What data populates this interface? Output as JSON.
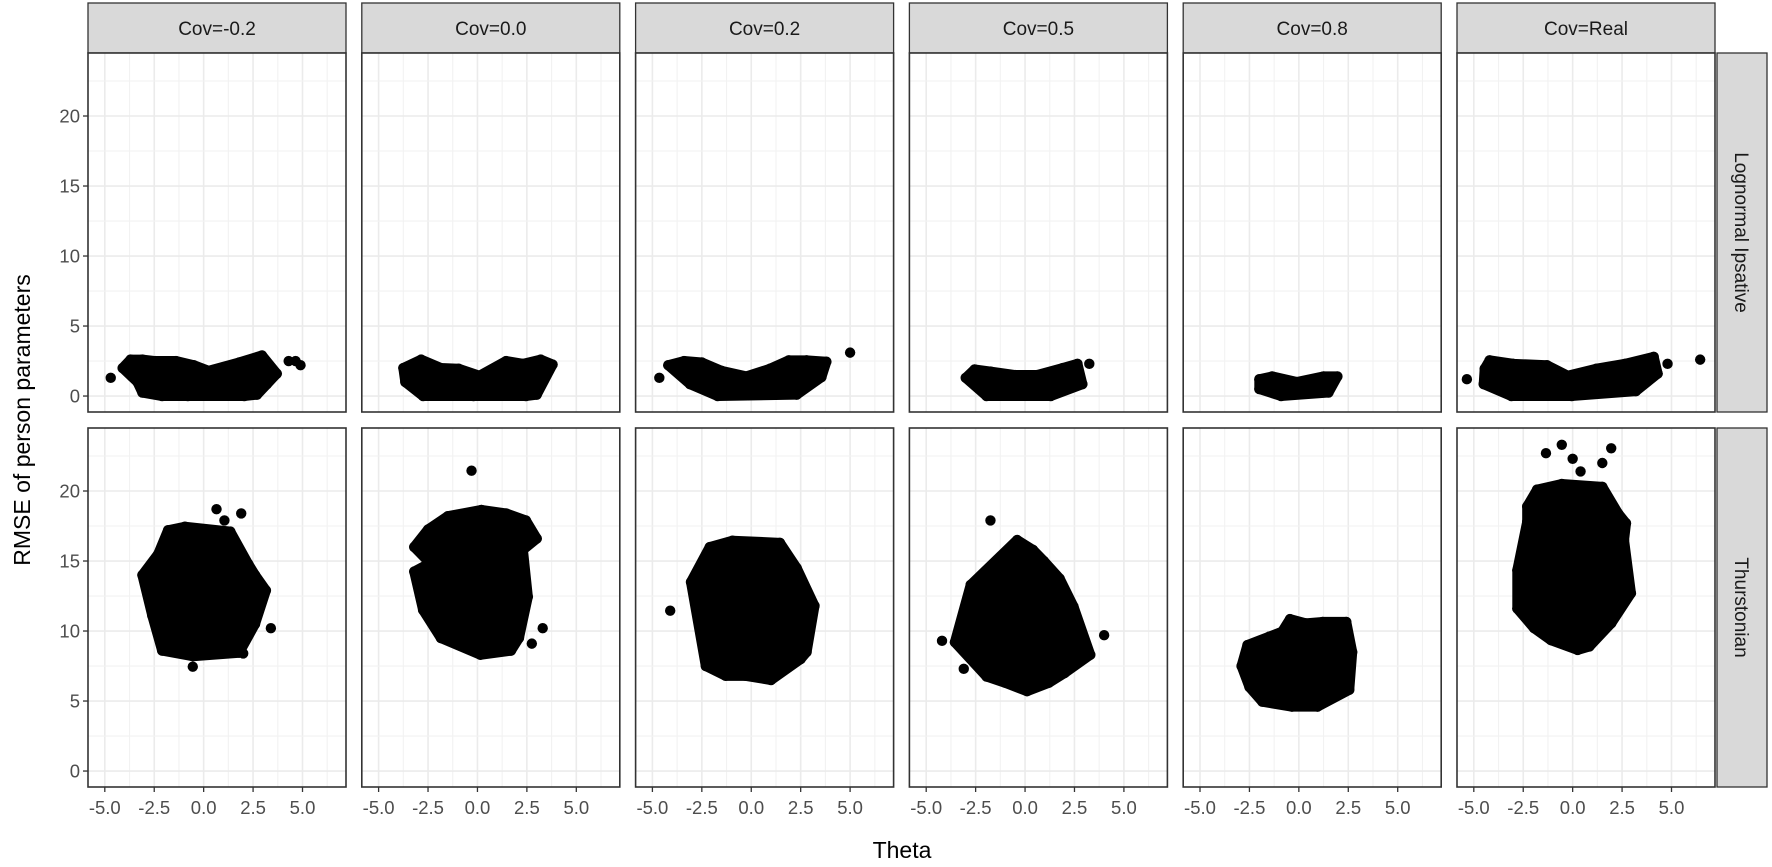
{
  "chart_data": {
    "type": "scatter",
    "xlabel": "Theta",
    "ylabel": "RMSE of person parameters",
    "xlim": [
      -5.85,
      7.2
    ],
    "ylim": [
      -1.14,
      24.5
    ],
    "x_ticks": [
      "-5.0",
      "-2.5",
      "0.0",
      "2.5",
      "5.0"
    ],
    "x_tick_values": [
      -5,
      -2.5,
      0,
      2.5,
      5
    ],
    "y_ticks": [
      "0",
      "5",
      "10",
      "15",
      "20"
    ],
    "y_tick_values": [
      0,
      5,
      10,
      15,
      20
    ],
    "grid": true,
    "point_color": "#000000",
    "strip_color": "#D9D9D9",
    "grid_color": "#EBEBEB",
    "columns": [
      "Cov=-0.2",
      "Cov=0.0",
      "Cov=0.2",
      "Cov=0.5",
      "Cov=0.8",
      "Cov=Real"
    ],
    "rows": [
      "Lognormal Ipsative",
      "Thurstonian"
    ],
    "panels": [
      [
        {
          "cloud_outline": [
            [
              -4.1,
              2.0
            ],
            [
              -3.7,
              2.6
            ],
            [
              -3.1,
              2.6
            ],
            [
              -2.45,
              2.5
            ],
            [
              -1.4,
              2.5
            ],
            [
              -0.5,
              2.2
            ],
            [
              0.25,
              1.8
            ],
            [
              1.8,
              2.4
            ],
            [
              2.95,
              2.9
            ],
            [
              3.7,
              1.6
            ],
            [
              3.2,
              0.85
            ],
            [
              2.7,
              0.1
            ],
            [
              2.05,
              0
            ],
            [
              -0.8,
              0
            ],
            [
              -2.1,
              0
            ],
            [
              -3.1,
              0.25
            ],
            [
              -3.35,
              1.0
            ]
          ],
          "outliers": [
            [
              -4.7,
              1.3
            ],
            [
              4.3,
              2.5
            ],
            [
              4.65,
              2.5
            ],
            [
              4.9,
              2.2
            ]
          ]
        },
        {
          "cloud_outline": [
            [
              -3.75,
              2.0
            ],
            [
              -2.85,
              2.6
            ],
            [
              -1.85,
              2.0
            ],
            [
              -0.95,
              1.95
            ],
            [
              0.1,
              1.45
            ],
            [
              1.45,
              2.5
            ],
            [
              2.3,
              2.3
            ],
            [
              3.2,
              2.6
            ],
            [
              3.8,
              2.25
            ],
            [
              3.0,
              0.1
            ],
            [
              2.45,
              0
            ],
            [
              -0.2,
              0
            ],
            [
              -2.75,
              0
            ],
            [
              -3.65,
              1.0
            ]
          ],
          "outliers": []
        },
        {
          "cloud_outline": [
            [
              -4.2,
              2.2
            ],
            [
              -3.4,
              2.5
            ],
            [
              -2.5,
              2.4
            ],
            [
              -1.5,
              1.8
            ],
            [
              -0.25,
              1.4
            ],
            [
              0.95,
              1.95
            ],
            [
              1.9,
              2.55
            ],
            [
              2.8,
              2.55
            ],
            [
              3.8,
              2.45
            ],
            [
              3.55,
              1.35
            ],
            [
              2.3,
              0.1
            ],
            [
              -1.7,
              0
            ],
            [
              -3.1,
              0.85
            ]
          ],
          "outliers": [
            [
              -4.65,
              1.3
            ],
            [
              5.0,
              3.1
            ]
          ]
        },
        {
          "cloud_outline": [
            [
              -2.55,
              1.9
            ],
            [
              -1.75,
              1.75
            ],
            [
              -0.5,
              1.5
            ],
            [
              0.6,
              1.5
            ],
            [
              1.9,
              2.0
            ],
            [
              2.65,
              2.3
            ],
            [
              2.9,
              0.85
            ],
            [
              1.3,
              0
            ],
            [
              -1.95,
              0
            ],
            [
              -3.0,
              1.3
            ]
          ],
          "outliers": [
            [
              3.25,
              2.3
            ]
          ]
        },
        {
          "cloud_outline": [
            [
              -2.0,
              1.2
            ],
            [
              -1.35,
              1.4
            ],
            [
              -0.1,
              1.0
            ],
            [
              1.25,
              1.4
            ],
            [
              1.95,
              1.4
            ],
            [
              1.5,
              0.25
            ],
            [
              -0.9,
              0
            ],
            [
              -2.0,
              0.5
            ]
          ],
          "outliers": []
        },
        {
          "cloud_outline": [
            [
              -4.45,
              1.95
            ],
            [
              -4.2,
              2.55
            ],
            [
              -3.0,
              2.3
            ],
            [
              -1.3,
              2.2
            ],
            [
              -0.25,
              1.45
            ],
            [
              1.2,
              1.95
            ],
            [
              2.65,
              2.3
            ],
            [
              4.1,
              2.8
            ],
            [
              4.3,
              1.6
            ],
            [
              3.2,
              0.35
            ],
            [
              -0.05,
              0
            ],
            [
              -3.1,
              0
            ],
            [
              -4.5,
              0.85
            ]
          ],
          "outliers": [
            [
              -5.35,
              1.2
            ],
            [
              4.8,
              2.3
            ],
            [
              6.45,
              2.6
            ]
          ]
        }
      ],
      [
        {
          "cloud_outline": [
            [
              -1.8,
              17.2
            ],
            [
              -0.95,
              17.45
            ],
            [
              1.35,
              17.1
            ],
            [
              2.25,
              14.8
            ],
            [
              2.6,
              14.0
            ],
            [
              3.15,
              12.9
            ],
            [
              2.6,
              10.5
            ],
            [
              1.8,
              8.45
            ],
            [
              -0.55,
              8.2
            ],
            [
              -2.1,
              8.6
            ],
            [
              -2.6,
              11.1
            ],
            [
              -3.1,
              14.0
            ],
            [
              -2.3,
              15.5
            ]
          ],
          "outliers": [
            [
              0.65,
              18.7
            ],
            [
              1.9,
              18.4
            ],
            [
              1.05,
              17.9
            ],
            [
              -0.55,
              7.45
            ],
            [
              3.4,
              10.2
            ],
            [
              2.0,
              8.4
            ]
          ]
        },
        {
          "cloud_outline": [
            [
              -2.5,
              17.25
            ],
            [
              -1.5,
              18.2
            ],
            [
              0.2,
              18.65
            ],
            [
              1.45,
              18.4
            ],
            [
              2.45,
              17.9
            ],
            [
              3.0,
              16.6
            ],
            [
              2.3,
              15.8
            ],
            [
              2.55,
              12.45
            ],
            [
              2.1,
              9.5
            ],
            [
              1.7,
              8.6
            ],
            [
              0.15,
              8.3
            ],
            [
              -1.85,
              9.5
            ],
            [
              -2.75,
              11.5
            ],
            [
              -3.2,
              14.25
            ],
            [
              -2.4,
              14.85
            ],
            [
              -3.2,
              16.0
            ]
          ],
          "outliers": [
            [
              -0.3,
              21.45
            ],
            [
              3.3,
              10.2
            ],
            [
              2.75,
              9.1
            ]
          ]
        },
        {
          "cloud_outline": [
            [
              -2.1,
              16.0
            ],
            [
              -0.95,
              16.45
            ],
            [
              1.45,
              16.3
            ],
            [
              2.3,
              14.5
            ],
            [
              3.2,
              11.8
            ],
            [
              2.8,
              8.5
            ],
            [
              2.5,
              8.0
            ],
            [
              1.0,
              6.5
            ],
            [
              -0.3,
              6.8
            ],
            [
              -1.3,
              6.8
            ],
            [
              -2.3,
              7.5
            ],
            [
              -3.05,
              13.5
            ]
          ],
          "outliers": [
            [
              -4.1,
              11.45
            ]
          ]
        },
        {
          "cloud_outline": [
            [
              -0.4,
              16.5
            ],
            [
              0.4,
              15.8
            ],
            [
              0.95,
              15.0
            ],
            [
              1.75,
              13.75
            ],
            [
              2.45,
              11.75
            ],
            [
              3.3,
              8.3
            ],
            [
              2.0,
              7.0
            ],
            [
              1.2,
              6.3
            ],
            [
              0.1,
              5.7
            ],
            [
              -1.0,
              6.3
            ],
            [
              -1.95,
              6.75
            ],
            [
              -3.55,
              9.2
            ],
            [
              -2.75,
              13.3
            ]
          ],
          "outliers": [
            [
              -1.75,
              17.9
            ],
            [
              4.0,
              9.7
            ],
            [
              -3.1,
              7.3
            ],
            [
              -4.2,
              9.3
            ]
          ]
        },
        {
          "cloud_outline": [
            [
              -2.6,
              9.0
            ],
            [
              -1.5,
              9.6
            ],
            [
              -0.85,
              9.95
            ],
            [
              -0.45,
              10.85
            ],
            [
              0.35,
              10.55
            ],
            [
              1.2,
              10.65
            ],
            [
              2.4,
              10.65
            ],
            [
              2.7,
              8.5
            ],
            [
              2.55,
              5.8
            ],
            [
              0.95,
              4.6
            ],
            [
              -0.35,
              4.6
            ],
            [
              -1.85,
              4.95
            ],
            [
              -2.5,
              6.0
            ],
            [
              -2.9,
              7.5
            ]
          ],
          "outliers": []
        },
        {
          "cloud_outline": [
            [
              -1.8,
              20.1
            ],
            [
              -0.55,
              20.5
            ],
            [
              1.5,
              20.3
            ],
            [
              2.3,
              18.4
            ],
            [
              2.7,
              17.7
            ],
            [
              2.6,
              16.5
            ],
            [
              2.95,
              12.7
            ],
            [
              1.95,
              10.55
            ],
            [
              0.85,
              8.9
            ],
            [
              0.25,
              8.65
            ],
            [
              -1.1,
              9.35
            ],
            [
              -1.95,
              10.2
            ],
            [
              -2.8,
              11.6
            ],
            [
              -2.8,
              14.35
            ],
            [
              -2.3,
              17.8
            ],
            [
              -2.3,
              18.9
            ]
          ],
          "outliers": [
            [
              -0.55,
              23.3
            ],
            [
              1.95,
              23.05
            ],
            [
              -1.35,
              22.7
            ],
            [
              0,
              22.3
            ],
            [
              0.4,
              21.4
            ],
            [
              1.5,
              22.0
            ]
          ]
        }
      ]
    ]
  }
}
